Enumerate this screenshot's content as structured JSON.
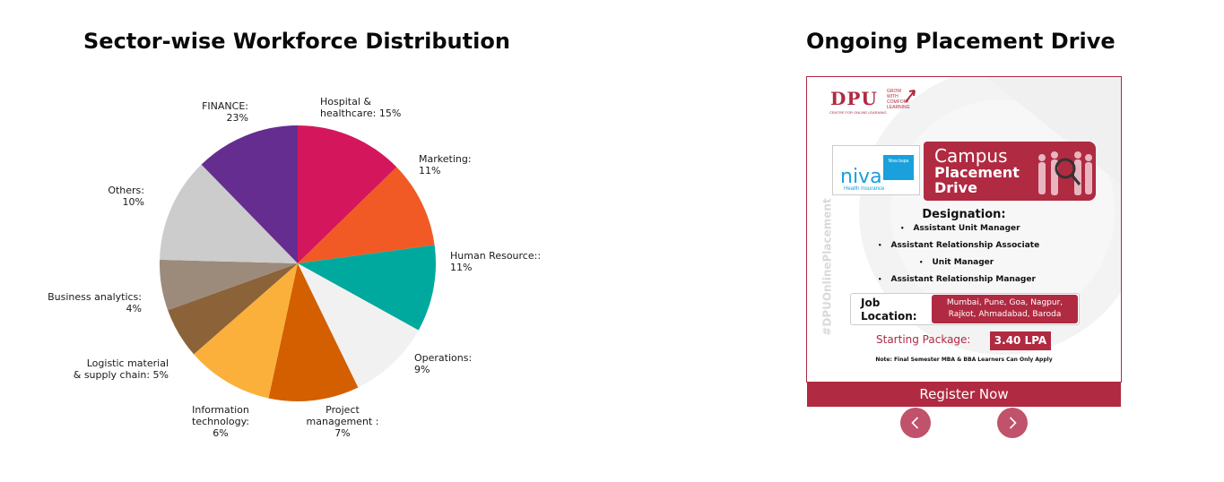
{
  "chart_section": {
    "title": "Sector-wise Workforce Distribution"
  },
  "chart_data": {
    "type": "pie",
    "title": "Sector-wise Workforce Distribution",
    "unit": "%",
    "slices": [
      {
        "label": [
          "Hospital &",
          "healthcare: 15%"
        ],
        "value": 15,
        "display": 15,
        "color": "#d4175c"
      },
      {
        "label": [
          "Marketing:",
          "11%"
        ],
        "value": 11,
        "display": 12,
        "color": "#f15a24"
      },
      {
        "label": [
          "Human Resource::",
          "11%"
        ],
        "value": 11,
        "display": 12,
        "color": "#00a99d"
      },
      {
        "label": [
          "Operations:",
          "9%"
        ],
        "value": 9,
        "display": 11.5,
        "color": "#f1f1f1"
      },
      {
        "label": [
          "Project",
          "management  :",
          "7%"
        ],
        "value": 7,
        "display": 12.5,
        "color": "#d35f00"
      },
      {
        "label": [
          "Information",
          "technology:",
          "6%"
        ],
        "value": 6,
        "display": 12,
        "color": "#fbb03b"
      },
      {
        "label": [
          "Logistic material",
          "& supply chain: 5%"
        ],
        "value": 5,
        "display": 7,
        "color": "#8c6239"
      },
      {
        "label": [
          "Business analytics:",
          "4%"
        ],
        "value": 4,
        "display": 7,
        "color": "#9c8b7b"
      },
      {
        "label": [
          "Others:",
          "10%"
        ],
        "value": 10,
        "display": 14.5,
        "color": "#cccccc"
      },
      {
        "label": [
          "FINANCE:",
          "23%"
        ],
        "value": 23,
        "display": 14.5,
        "color": "#662d91"
      }
    ],
    "legend": "labels beside slices",
    "start_angle": "12 o'clock, clockwise"
  },
  "drive_section": {
    "title": "Ongoing Placement Drive"
  },
  "poster": {
    "logo": "DPU",
    "logo_tagline": "CENTRE FOR ONLINE LEARNING",
    "logo_side_text": [
      "GROW",
      "WITH",
      "COMFORT",
      "LEARNING"
    ],
    "partner_name": "niva",
    "partner_badge": "Niva bupa",
    "partner_subtitle": "Health Insurance",
    "campus_line1": "Campus",
    "campus_line2": "Placement",
    "campus_line3": "Drive",
    "designation_title": "Designation:",
    "designations": [
      "Assistant Unit Manager",
      "Assistant Relationship Associate",
      "Unit Manager",
      "Assistant Relationship Manager"
    ],
    "job_location_label_1": "Job",
    "job_location_label_2": "Location:",
    "job_location_line1": "Mumbai, Pune, Goa, Nagpur,",
    "job_location_line2": "Rajkot, Ahmadabad, Baroda",
    "package_label": "Starting Package:",
    "package_value": "3.40 LPA",
    "note": "Note: Final Semester MBA & BBA Learners Can Only Apply",
    "vertical_tag": "#DPUOnlinePlacement"
  },
  "register_button": "Register Now",
  "carousel": {
    "prev_icon": "chevron-left-icon",
    "next_icon": "chevron-right-icon"
  },
  "colors": {
    "brand": "#b02a41",
    "nav": "#c0526b",
    "partner": "#1aa0dc"
  }
}
